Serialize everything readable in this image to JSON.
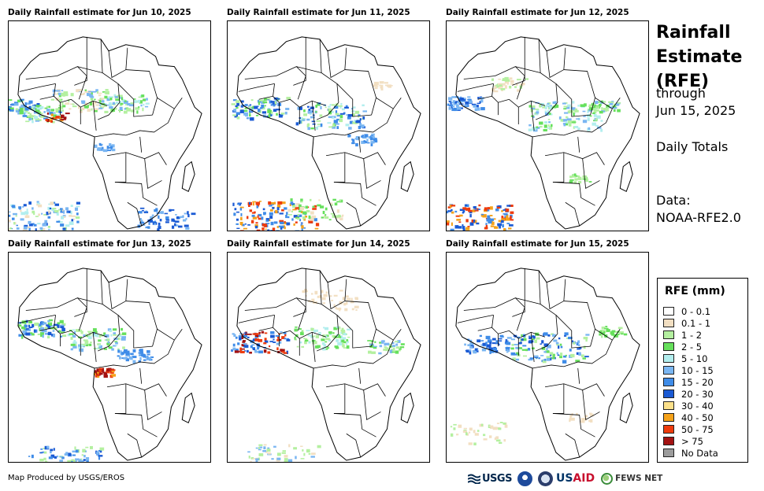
{
  "panels": [
    {
      "title": "Daily Rainfall estimate for Jun 10, 2025"
    },
    {
      "title": "Daily Rainfall estimate for Jun 11, 2025"
    },
    {
      "title": "Daily Rainfall estimate for Jun 12, 2025"
    },
    {
      "title": "Daily Rainfall estimate for Jun 13, 2025"
    },
    {
      "title": "Daily Rainfall estimate for Jun 14, 2025"
    },
    {
      "title": "Daily Rainfall estimate for Jun 15, 2025"
    }
  ],
  "side": {
    "title": "Rainfall Estimate (RFE)",
    "through": "through",
    "end_date": "Jun 15, 2025",
    "totals": "Daily Totals",
    "data_label": "Data:",
    "data_source": "NOAA-RFE2.0"
  },
  "legend": {
    "title": "RFE (mm)",
    "items": [
      {
        "label": "0 - 0.1",
        "color": "#ffffff"
      },
      {
        "label": "0.1 - 1",
        "color": "#f2dfc2"
      },
      {
        "label": "1 - 2",
        "color": "#b4f0a0"
      },
      {
        "label": "2 - 5",
        "color": "#66e05c"
      },
      {
        "label": "5 - 10",
        "color": "#b2eeee"
      },
      {
        "label": "10 - 15",
        "color": "#7ab6f2"
      },
      {
        "label": "15 - 20",
        "color": "#3f8ce8"
      },
      {
        "label": "20 - 30",
        "color": "#1a5ad4"
      },
      {
        "label": "30 - 40",
        "color": "#fbe08a"
      },
      {
        "label": "40 - 50",
        "color": "#f5a21a"
      },
      {
        "label": "50 - 75",
        "color": "#ee3b0c"
      },
      {
        "label": "> 75",
        "color": "#a31212"
      },
      {
        "label": "No Data",
        "color": "#9c9c9c"
      }
    ]
  },
  "footer": {
    "credit": "Map Produced by USGS/EROS",
    "usgs": "USGS",
    "usaid_a": "US",
    "usaid_b": "AID",
    "fews": "FEWS NET"
  }
}
